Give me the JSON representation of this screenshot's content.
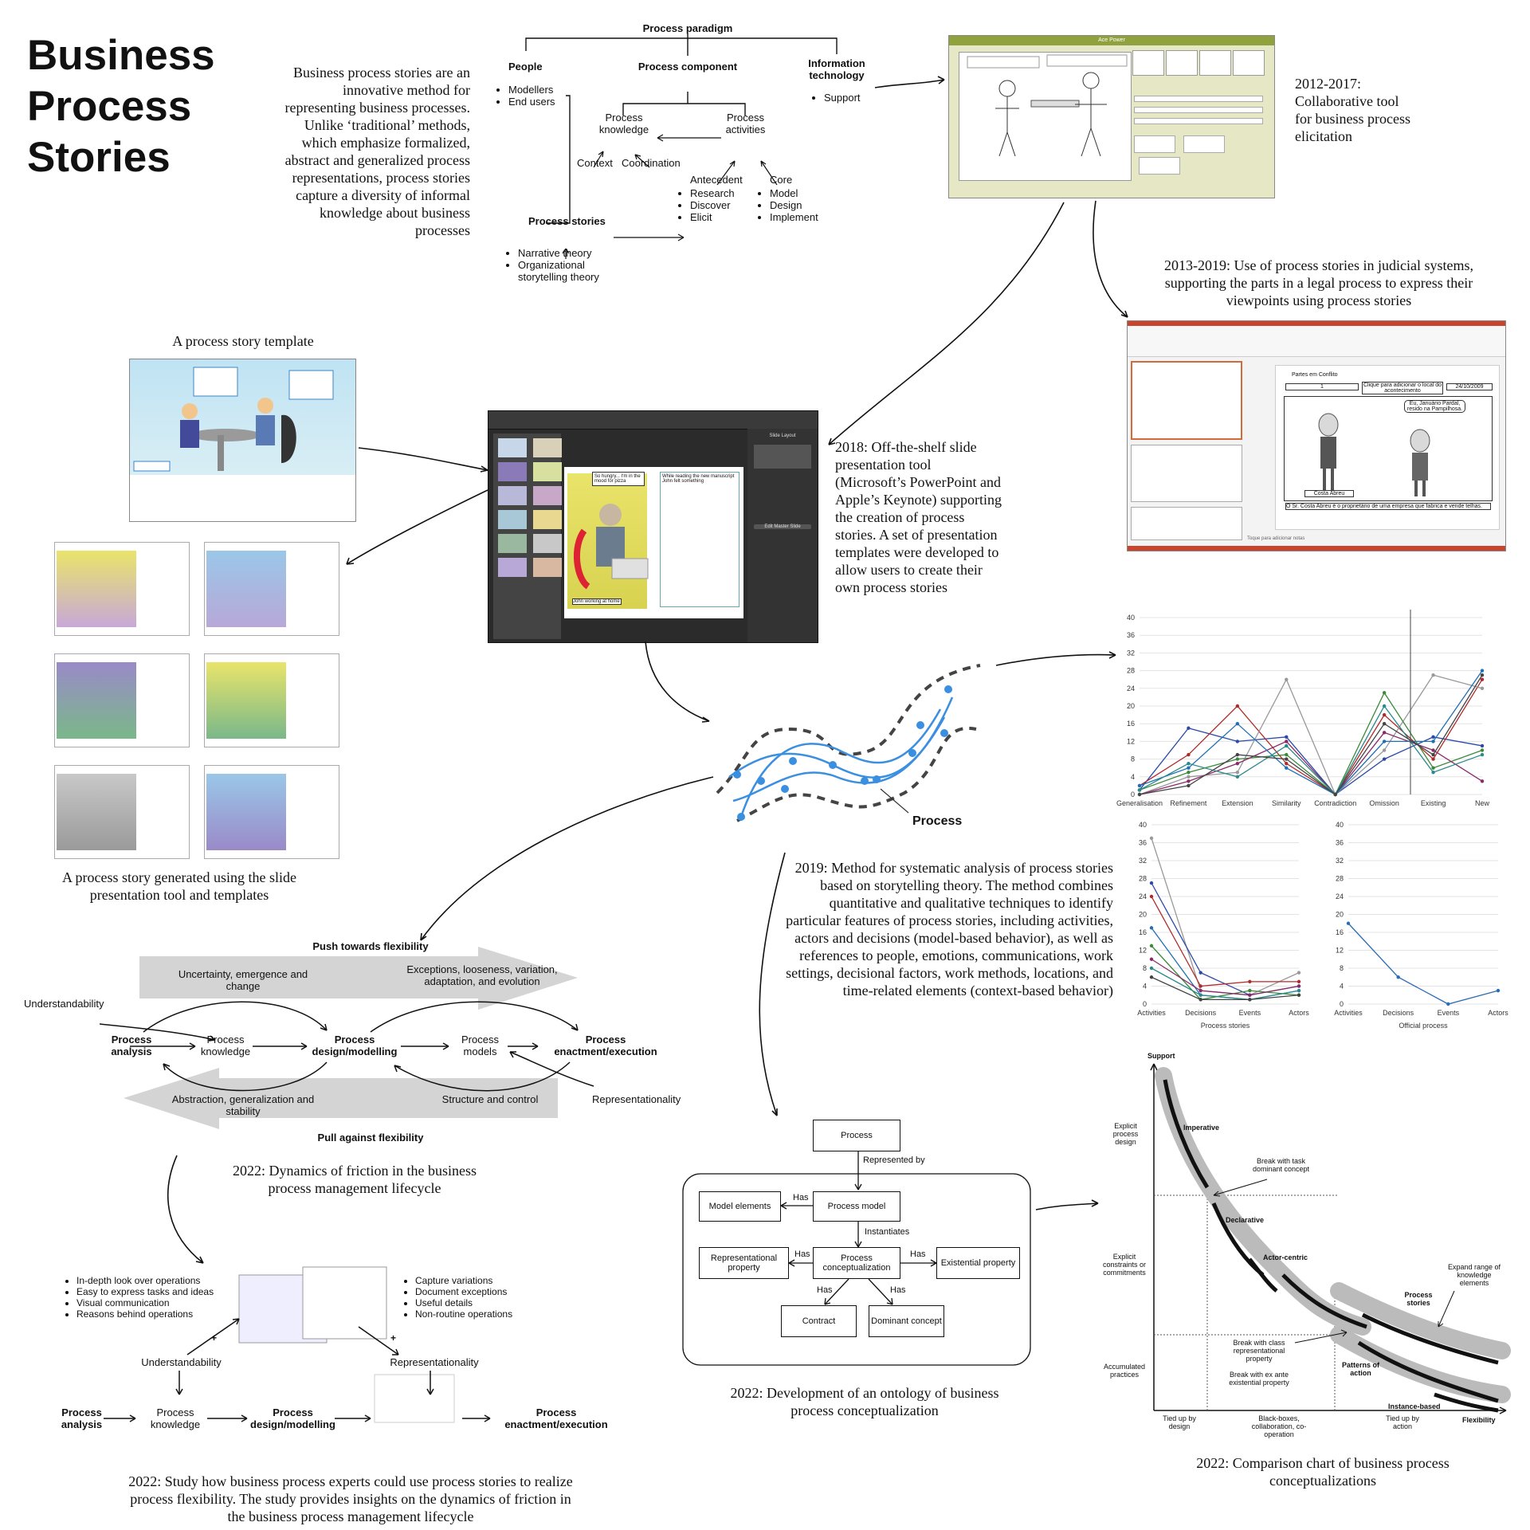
{
  "title": "Business Process Stories",
  "intro": "Business process stories are an innovative method for representing business processes. Unlike ‘traditional’ methods, which emphasize formalized, abstract and generalized process representations, process stories capture a diversity of informal knowledge about business processes",
  "paradigm": {
    "root": "Process paradigm",
    "people": "People",
    "people_items": [
      "Modellers",
      "End users"
    ],
    "component": "Process component",
    "it": "Information technology",
    "it_items": [
      "Support"
    ],
    "knowledge": "Process knowledge",
    "activities": "Process activities",
    "context": "Context",
    "coordination": "Coordination",
    "antecedent": "Antecedent",
    "antecedent_items": [
      "Research",
      "Discover",
      "Elicit"
    ],
    "core": "Core",
    "core_items": [
      "Model",
      "Design",
      "Implement"
    ],
    "stories": "Process stories",
    "stories_items": [
      "Narrative theory",
      "Organizational storytelling theory"
    ]
  },
  "captions": {
    "c2012": "2012-2017: Collaborative tool for business process elicitation",
    "c2013": "2013-2019: Use of process stories in judicial systems, supporting the parts in a legal process to express their viewpoints using process stories",
    "template": "A process story template",
    "c2018": "2018: Off-the-shelf slide presentation tool (Microsoft’s PowerPoint and Apple’s Keynote) supporting the creation of process stories. A set of presentation templates were developed to allow users to create their own process stories",
    "generated": "A process story generated using the slide presentation tool and templates",
    "c2019": "2019: Method for systematic analysis of process stories based on storytelling theory. The method combines quantitative and qualitative techniques to identify particular features of process stories, including activities, actors and decisions (model-based behavior), as well as references to people, emotions, communications, work settings, decisional factors, work methods, locations, and time-related elements (context-based behavior)",
    "friction": "2022: Dynamics of friction in the business process management lifecycle",
    "ontology": "2022: Development of an ontology of business process conceptualization",
    "study": "2022: Study how business process experts could use process stories to realize process flexibility. The study provides insights on the dynamics of friction in the business process management lifecycle",
    "comparison": "2022: Comparison chart of business process conceptualizations"
  },
  "process_label": "Process",
  "screens": {
    "tool_title": "Ace Power",
    "pt_heading": "Partes em Conflito",
    "pt_number": "1",
    "pt_clique": "Clique para adicionar o local do acontecimento",
    "pt_date": "24/10/2009",
    "pt_bubble": "Eu, Januário Pardal, resido na Pampilhosa.",
    "pt_name": "Costa Abreu",
    "pt_text": "O Sr. Costa Abreu é o proprietário de uma empresa que fabrica e vende telhas.",
    "pt_footer": "Toque para adicionar notas",
    "kn_bubble": "So hungry... I'm in the mood for pizza",
    "kn_text": "While reading the new manuscript John felt something",
    "kn_label": "John working at home",
    "kn_panel": "Slide Layout",
    "kn_button": "Edit Master Slide"
  },
  "friction": {
    "push": "Push towards flexibility",
    "pull": "Pull against flexibility",
    "uncertainty": "Uncertainty, emergence and change",
    "exceptions": "Exceptions, looseness, variation, adaptation, and evolution",
    "abstraction": "Abstraction, generalization and stability",
    "structure": "Structure and control",
    "understandability": "Understandability",
    "representationality": "Representationality",
    "analysis": "Process analysis",
    "knowledge": "Process knowledge",
    "design": "Process design/modelling",
    "models": "Process models",
    "enactment": "Process enactment/execution"
  },
  "study": {
    "left_items": [
      "In-depth look over operations",
      "Easy to express tasks and ideas",
      "Visual communication",
      "Reasons behind operations"
    ],
    "right_items": [
      "Capture variations",
      "Document exceptions",
      "Useful details",
      "Non-routine operations"
    ],
    "plus": "+",
    "understandability": "Understandability",
    "representationality": "Representationality",
    "analysis": "Process analysis",
    "knowledge": "Process knowledge",
    "design": "Process design/modelling",
    "enactment": "Process enactment/execution"
  },
  "ontology": {
    "process": "Process",
    "represented_by": "Represented by",
    "process_model": "Process model",
    "model_elements": "Model elements",
    "has": "Has",
    "instantiates": "Instantiates",
    "conceptualization": "Process conceptualization",
    "representational": "Representational property",
    "existential": "Existential property",
    "contract": "Contract",
    "dominant": "Dominant concept"
  },
  "comparison": {
    "support": "Support",
    "flexibility": "Flexibility",
    "y_labels": [
      "Explicit process design",
      "Explicit constraints or commitments",
      "Accumulated practices"
    ],
    "x_labels": [
      "Tied up by design",
      "Black-boxes, collaboration, co-operation",
      "Tied up by action"
    ],
    "imperative": "Imperative",
    "declarative": "Declarative",
    "actor_centric": "Actor-centric",
    "process_stories": "Process stories",
    "patterns": "Patterns of action",
    "instance_based": "Instance-based",
    "break_task": "Break with task dominant concept",
    "break_class": "Break with class representational property",
    "break_exante": "Break with ex ante existential property",
    "expand": "Expand range of knowledge elements"
  },
  "chart_data": [
    {
      "type": "line",
      "categories": [
        "Generalisation",
        "Refinement",
        "Extension",
        "Similarity",
        "Contradiction",
        "Omission",
        "Existing",
        "New"
      ],
      "ylim": [
        0,
        40
      ],
      "yticks": [
        0,
        4,
        8,
        12,
        16,
        20,
        24,
        28,
        32,
        36,
        40
      ],
      "series": [
        {
          "values": [
            1,
            15,
            12,
            13,
            0,
            8,
            13,
            11
          ],
          "color": "#2b4aa8"
        },
        {
          "values": [
            2,
            9,
            20,
            7,
            0,
            18,
            8,
            26
          ],
          "color": "#b02a2a"
        },
        {
          "values": [
            0,
            4,
            5,
            26,
            0,
            10,
            27,
            24
          ],
          "color": "#999999"
        },
        {
          "values": [
            1,
            5,
            8,
            9,
            0,
            23,
            6,
            10
          ],
          "color": "#3a8a3a"
        },
        {
          "values": [
            0,
            3,
            7,
            12,
            0,
            14,
            10,
            3
          ],
          "color": "#8a2a6a"
        },
        {
          "values": [
            2,
            6,
            16,
            6,
            0,
            12,
            12,
            28
          ],
          "color": "#1f6fb5"
        },
        {
          "values": [
            1,
            7,
            4,
            11,
            0,
            20,
            5,
            9
          ],
          "color": "#2a8a8a"
        },
        {
          "values": [
            0,
            2,
            9,
            8,
            0,
            16,
            9,
            27
          ],
          "color": "#444444"
        }
      ]
    },
    {
      "type": "line",
      "categories": [
        "Activities",
        "Decisions",
        "Events",
        "Actors"
      ],
      "xlabel": "Process stories",
      "ylim": [
        0,
        40
      ],
      "yticks": [
        0,
        4,
        8,
        12,
        16,
        20,
        24,
        28,
        32,
        36,
        40
      ],
      "series": [
        {
          "values": [
            37,
            3,
            2,
            7
          ],
          "color": "#999999"
        },
        {
          "values": [
            27,
            7,
            2,
            4
          ],
          "color": "#2b4aa8"
        },
        {
          "values": [
            24,
            4,
            5,
            5
          ],
          "color": "#b02a2a"
        },
        {
          "values": [
            17,
            2,
            1,
            3
          ],
          "color": "#1f6fb5"
        },
        {
          "values": [
            13,
            1,
            3,
            2
          ],
          "color": "#3a8a3a"
        },
        {
          "values": [
            10,
            3,
            2,
            4
          ],
          "color": "#8a2a6a"
        },
        {
          "values": [
            8,
            2,
            1,
            3
          ],
          "color": "#2a8a8a"
        },
        {
          "values": [
            6,
            1,
            1,
            2
          ],
          "color": "#444444"
        }
      ]
    },
    {
      "type": "line",
      "categories": [
        "Activities",
        "Decisions",
        "Events",
        "Actors"
      ],
      "xlabel": "Official process",
      "ylim": [
        0,
        40
      ],
      "yticks": [
        0,
        4,
        8,
        12,
        16,
        20,
        24,
        28,
        32,
        36,
        40
      ],
      "series": [
        {
          "values": [
            18,
            6,
            0,
            3
          ],
          "color": "#2b6cb5"
        }
      ]
    }
  ]
}
